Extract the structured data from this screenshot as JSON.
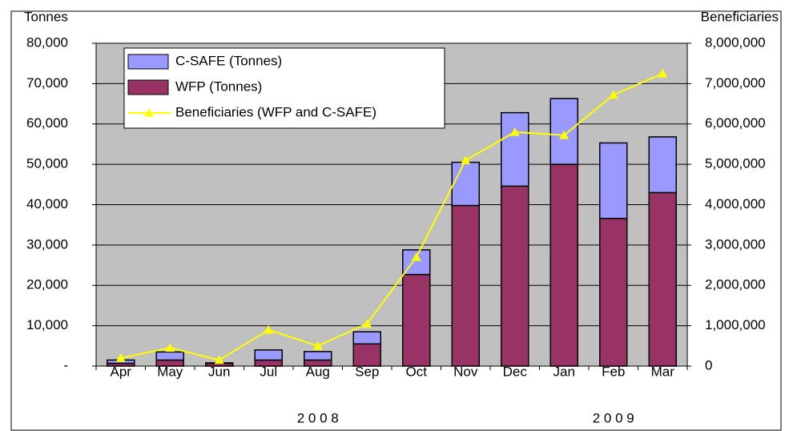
{
  "chart_data": {
    "type": "bar",
    "stacked": true,
    "y_label": "Tonnes",
    "y2_label": "Beneficiaries",
    "categories": [
      "Apr",
      "May",
      "Jun",
      "Jul",
      "Aug",
      "Sep",
      "Oct",
      "Nov",
      "Dec",
      "Jan",
      "Feb",
      "Mar"
    ],
    "group_labels": [
      "2 0 0 8",
      "2 0 0 9"
    ],
    "series": [
      {
        "name": "C-SAFE (Tonnes)",
        "type": "bar",
        "color": "#9999ff",
        "values": [
          800,
          2000,
          100,
          2500,
          2100,
          3000,
          6100,
          10700,
          18200,
          16300,
          18700,
          13800
        ]
      },
      {
        "name": "WFP (Tonnes)",
        "type": "bar",
        "color": "#993366",
        "values": [
          700,
          1500,
          700,
          1500,
          1500,
          5500,
          22700,
          39800,
          44600,
          50000,
          36600,
          43000
        ]
      },
      {
        "name": "Beneficiaries (WFP and C-SAFE)",
        "type": "line",
        "axis": "y2",
        "color": "#ffff00",
        "values": [
          200000,
          450000,
          150000,
          900000,
          500000,
          1050000,
          2700000,
          5100000,
          5800000,
          5720000,
          6720000,
          7250000
        ]
      }
    ],
    "ylim": [
      0,
      80000
    ],
    "yticks": [
      {
        "value": 0,
        "label": "-"
      },
      {
        "value": 10000,
        "label": "10,000"
      },
      {
        "value": 20000,
        "label": "20,000"
      },
      {
        "value": 30000,
        "label": "30,000"
      },
      {
        "value": 40000,
        "label": "40,000"
      },
      {
        "value": 50000,
        "label": "50,000"
      },
      {
        "value": 60000,
        "label": "60,000"
      },
      {
        "value": 70000,
        "label": "70,000"
      },
      {
        "value": 80000,
        "label": "80,000"
      }
    ],
    "y2lim": [
      0,
      8000000
    ],
    "y2ticks": [
      0,
      {
        "value": 1000000,
        "label": "1,000,000"
      },
      {
        "value": 2000000,
        "label": "2,000,000"
      },
      {
        "value": 3000000,
        "label": "3,000,000"
      },
      {
        "value": 4000000,
        "label": "4,000,000"
      },
      {
        "value": 5000000,
        "label": "5,000,000"
      },
      {
        "value": 6000000,
        "label": "6,000,000"
      },
      {
        "value": 7000000,
        "label": "7,000,000"
      },
      {
        "value": 8000000,
        "label": "8,000,000"
      }
    ],
    "grid": true,
    "legend": "upper left",
    "plot_background": "#c0c0c0"
  }
}
